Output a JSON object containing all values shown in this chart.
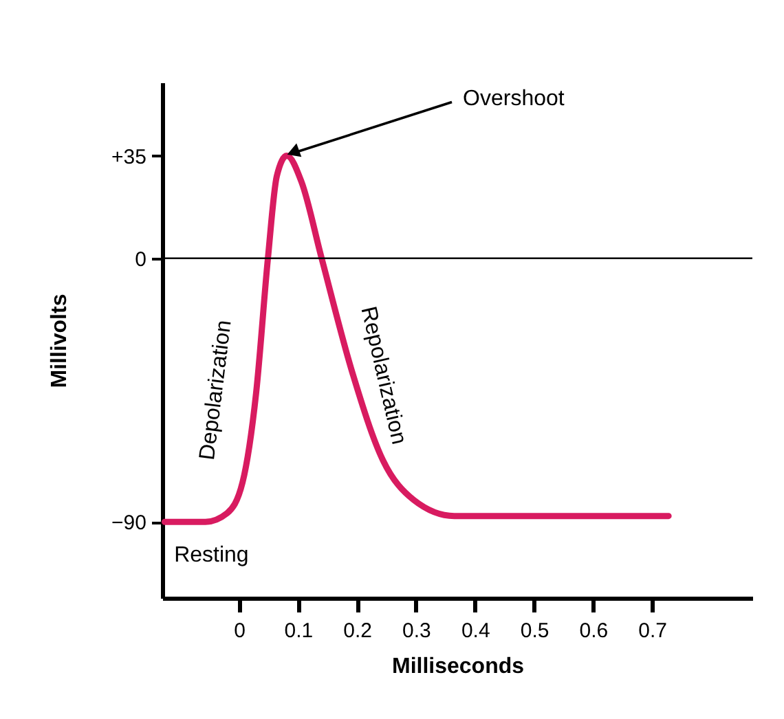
{
  "chart_data": {
    "type": "line",
    "xlabel": "Milliseconds",
    "ylabel": "Millivolts",
    "x": [
      -0.126,
      -0.057,
      -0.02,
      0.006,
      0.029,
      0.049,
      0.064,
      0.081,
      0.106,
      0.14,
      0.192,
      0.244,
      0.296,
      0.365,
      0.728
    ],
    "series": [
      {
        "color": "#d81b60",
        "values": [
          -90,
          -90,
          -87,
          -76.5,
          -46,
          0,
          28,
          35,
          26,
          0,
          -39,
          -69,
          -82.5,
          -88,
          -88
        ]
      }
    ],
    "xlim": [
      -0.13,
      0.87
    ],
    "xticks": [
      0,
      0.1,
      0.2,
      0.3,
      0.4,
      0.5,
      0.6,
      0.7
    ],
    "ylim": [
      -116,
      60
    ],
    "yticks": [
      {
        "value": 35,
        "label": "+35"
      },
      0,
      {
        "value": -90,
        "label": "−90"
      }
    ],
    "ref_lines": [
      {
        "axis": "y",
        "value": 0,
        "color": "#000000"
      }
    ],
    "annotations": [
      {
        "text": "Overshoot",
        "x": 0.081,
        "y": 35
      },
      {
        "text": "Depolarization",
        "x": 0.03,
        "y": -45
      },
      {
        "text": "Repolarization",
        "x": 0.18,
        "y": -40
      },
      {
        "text": "Resting",
        "x": -0.11,
        "y": -90
      }
    ],
    "marker": "none",
    "line_style": "solid"
  }
}
